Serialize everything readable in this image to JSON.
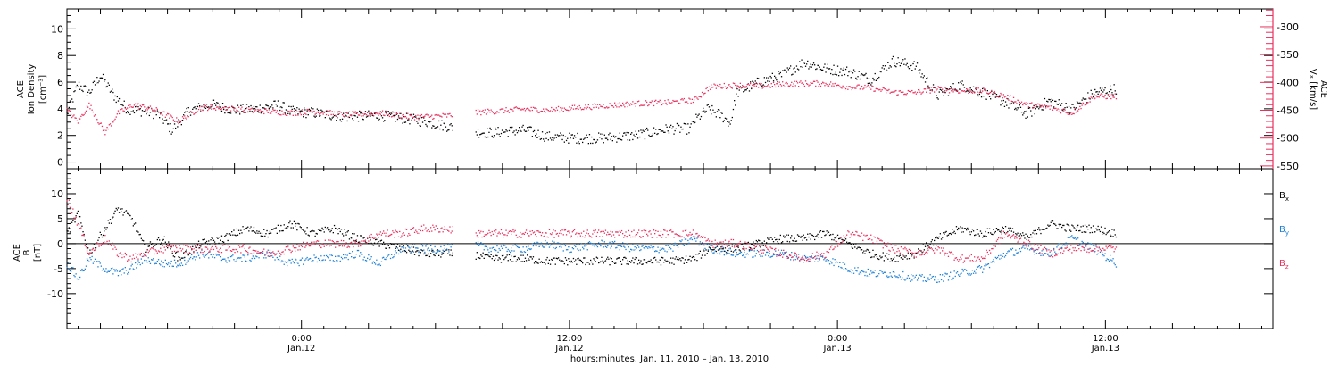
{
  "x_axis": {
    "title": "hours:minutes, Jan. 11, 2010 – Jan. 13, 2010",
    "ticks": [
      {
        "hour": 24,
        "time": "0:00",
        "date": "Jan.12"
      },
      {
        "hour": 36,
        "time": "12:00",
        "date": "Jan.12"
      },
      {
        "hour": 48,
        "time": "0:00",
        "date": "Jan.13"
      },
      {
        "hour": 60,
        "time": "12:00",
        "date": "Jan.13"
      }
    ]
  },
  "chart_data": [
    {
      "type": "scatter",
      "panel": "top",
      "xrange_hours": [
        13.5,
        67.5
      ],
      "ylim": [
        -0.5,
        11.5
      ],
      "y2lim": [
        -555,
        -268
      ],
      "yticks": [
        "0",
        "2",
        "4",
        "6",
        "8",
        "10"
      ],
      "ytick_values": [
        0,
        2,
        4,
        6,
        8,
        10
      ],
      "y2ticks": [
        "-300",
        "-350",
        "-400",
        "-450",
        "-500",
        "-550"
      ],
      "y2tick_values": [
        -300,
        -350,
        -400,
        -450,
        -500,
        -550
      ],
      "ylabel_lines": [
        "ACE",
        "Ion Density",
        "[cm⁻³]"
      ],
      "y2label_lines": [
        "ACE",
        "Vₓ [km/s]"
      ],
      "gap_hours": [
        30.8,
        31.8
      ],
      "series": [
        {
          "color": "#000000",
          "axis": "left",
          "keypoints": [
            [
              13.5,
              3.6
            ],
            [
              14.0,
              5.8
            ],
            [
              14.5,
              5.2
            ],
            [
              15.0,
              6.5
            ],
            [
              15.6,
              5.0
            ],
            [
              16.2,
              4.0
            ],
            [
              17.0,
              3.8
            ],
            [
              17.6,
              3.6
            ],
            [
              18.2,
              2.4
            ],
            [
              19.0,
              3.9
            ],
            [
              20.0,
              4.3
            ],
            [
              21.0,
              3.9
            ],
            [
              22.0,
              4.0
            ],
            [
              23.0,
              4.3
            ],
            [
              23.5,
              3.8
            ],
            [
              24.5,
              3.7
            ],
            [
              26.0,
              3.4
            ],
            [
              27.5,
              3.5
            ],
            [
              29.0,
              3.2
            ],
            [
              30.5,
              2.7
            ],
            [
              31.5,
              2.3
            ],
            [
              32.5,
              2.2
            ],
            [
              34.0,
              2.4
            ],
            [
              35.0,
              1.9
            ],
            [
              36.0,
              1.8
            ],
            [
              37.5,
              1.8
            ],
            [
              39.0,
              2.0
            ],
            [
              40.5,
              2.5
            ],
            [
              41.4,
              2.5
            ],
            [
              41.6,
              3.1
            ],
            [
              42.2,
              4.0
            ],
            [
              42.8,
              3.5
            ],
            [
              43.2,
              2.9
            ],
            [
              43.5,
              5.2
            ],
            [
              44.5,
              6.0
            ],
            [
              45.5,
              6.5
            ],
            [
              46.5,
              7.5
            ],
            [
              47.5,
              7.0
            ],
            [
              48.5,
              6.8
            ],
            [
              49.5,
              6.2
            ],
            [
              50.5,
              7.6
            ],
            [
              51.5,
              7.2
            ],
            [
              52.5,
              5.0
            ],
            [
              53.5,
              5.8
            ],
            [
              54.5,
              5.2
            ],
            [
              55.5,
              4.5
            ],
            [
              56.5,
              3.6
            ],
            [
              57.5,
              4.6
            ],
            [
              58.5,
              4.0
            ],
            [
              59.5,
              5.2
            ],
            [
              60.5,
              5.5
            ]
          ]
        },
        {
          "color": "#e8305d",
          "axis": "right",
          "keypoints": [
            [
              13.5,
              -450
            ],
            [
              14.0,
              -470
            ],
            [
              14.5,
              -440
            ],
            [
              15.2,
              -490
            ],
            [
              15.8,
              -455
            ],
            [
              16.5,
              -440
            ],
            [
              17.5,
              -450
            ],
            [
              18.5,
              -470
            ],
            [
              19.5,
              -445
            ],
            [
              20.5,
              -445
            ],
            [
              21.5,
              -450
            ],
            [
              22.5,
              -452
            ],
            [
              23.5,
              -455
            ],
            [
              24.5,
              -452
            ],
            [
              26.0,
              -458
            ],
            [
              27.5,
              -455
            ],
            [
              29.0,
              -462
            ],
            [
              30.5,
              -460
            ],
            [
              31.5,
              -455
            ],
            [
              32.5,
              -452
            ],
            [
              34.0,
              -448
            ],
            [
              35.0,
              -450
            ],
            [
              36.5,
              -445
            ],
            [
              37.5,
              -442
            ],
            [
              39.0,
              -438
            ],
            [
              40.5,
              -436
            ],
            [
              41.6,
              -432
            ],
            [
              42.3,
              -408
            ],
            [
              43.5,
              -405
            ],
            [
              44.5,
              -407
            ],
            [
              46.0,
              -402
            ],
            [
              47.5,
              -402
            ],
            [
              48.5,
              -408
            ],
            [
              49.5,
              -410
            ],
            [
              50.5,
              -418
            ],
            [
              51.5,
              -418
            ],
            [
              52.5,
              -412
            ],
            [
              53.5,
              -415
            ],
            [
              54.5,
              -415
            ],
            [
              55.5,
              -425
            ],
            [
              56.5,
              -440
            ],
            [
              57.5,
              -445
            ],
            [
              58.5,
              -455
            ],
            [
              59.5,
              -425
            ],
            [
              60.5,
              -425
            ]
          ]
        }
      ]
    },
    {
      "type": "scatter",
      "panel": "bottom",
      "xrange_hours": [
        13.5,
        67.5
      ],
      "ylim": [
        -17,
        15
      ],
      "yticks": [
        "10",
        "5",
        "0",
        "-5",
        "-10"
      ],
      "ytick_values": [
        10,
        5,
        0,
        -5,
        -10
      ],
      "ylabel_lines": [
        "ACE",
        "B",
        "[nT]"
      ],
      "zero_line": 0,
      "gap_hours": [
        30.8,
        31.8
      ],
      "series": [
        {
          "name": "Bx",
          "label_main": "B",
          "label_sub": "x",
          "color": "#000000",
          "keypoints": [
            [
              13.5,
              2
            ],
            [
              14.0,
              6
            ],
            [
              14.5,
              -2
            ],
            [
              15.2,
              3
            ],
            [
              15.8,
              7
            ],
            [
              16.4,
              5
            ],
            [
              17.0,
              -1
            ],
            [
              17.8,
              1
            ],
            [
              18.5,
              -3
            ],
            [
              19.5,
              0
            ],
            [
              20.5,
              1
            ],
            [
              21.5,
              3
            ],
            [
              22.5,
              2
            ],
            [
              23.5,
              4
            ],
            [
              24.5,
              2
            ],
            [
              25.5,
              3
            ],
            [
              26.5,
              1
            ],
            [
              27.5,
              0
            ],
            [
              28.5,
              -1
            ],
            [
              29.5,
              -2
            ],
            [
              30.5,
              -2
            ],
            [
              31.5,
              -2
            ],
            [
              32.5,
              -3
            ],
            [
              34.0,
              -3
            ],
            [
              35.0,
              -3.5
            ],
            [
              36.0,
              -3.5
            ],
            [
              37.5,
              -3.5
            ],
            [
              39.0,
              -3.5
            ],
            [
              40.5,
              -3.5
            ],
            [
              41.6,
              -3
            ],
            [
              42.3,
              -1
            ],
            [
              43.5,
              -1
            ],
            [
              44.5,
              0
            ],
            [
              45.5,
              1
            ],
            [
              46.5,
              1
            ],
            [
              47.5,
              2
            ],
            [
              48.5,
              0
            ],
            [
              49.5,
              -2
            ],
            [
              50.5,
              -3
            ],
            [
              51.5,
              -2
            ],
            [
              52.5,
              1
            ],
            [
              53.5,
              3
            ],
            [
              54.5,
              2
            ],
            [
              55.5,
              3
            ],
            [
              56.5,
              1
            ],
            [
              57.5,
              4
            ],
            [
              58.5,
              3
            ],
            [
              59.5,
              3
            ],
            [
              60.5,
              2
            ]
          ]
        },
        {
          "name": "By",
          "label_main": "B",
          "label_sub": "y",
          "color": "#1b7fd6",
          "keypoints": [
            [
              13.5,
              -4
            ],
            [
              14.0,
              -7
            ],
            [
              14.5,
              -3
            ],
            [
              15.2,
              -5
            ],
            [
              15.8,
              -6
            ],
            [
              16.4,
              -5
            ],
            [
              17.0,
              -3
            ],
            [
              17.8,
              -4
            ],
            [
              18.5,
              -4
            ],
            [
              19.5,
              -2
            ],
            [
              20.5,
              -3
            ],
            [
              21.5,
              -3
            ],
            [
              22.5,
              -2
            ],
            [
              23.5,
              -4
            ],
            [
              24.5,
              -3
            ],
            [
              25.5,
              -3
            ],
            [
              26.5,
              -2
            ],
            [
              27.5,
              -4
            ],
            [
              28.5,
              -1
            ],
            [
              29.5,
              -1
            ],
            [
              30.5,
              -1
            ],
            [
              31.5,
              0
            ],
            [
              32.5,
              -1
            ],
            [
              34.0,
              -1
            ],
            [
              35.0,
              0
            ],
            [
              36.0,
              -1
            ],
            [
              37.5,
              0
            ],
            [
              39.0,
              -1
            ],
            [
              40.5,
              -1
            ],
            [
              41.6,
              1
            ],
            [
              42.3,
              -1
            ],
            [
              43.5,
              -2
            ],
            [
              44.5,
              -2
            ],
            [
              45.5,
              -2
            ],
            [
              46.5,
              -3
            ],
            [
              47.5,
              -3
            ],
            [
              48.5,
              -5
            ],
            [
              49.5,
              -6
            ],
            [
              50.5,
              -6
            ],
            [
              51.5,
              -7
            ],
            [
              52.5,
              -7
            ],
            [
              53.5,
              -6
            ],
            [
              54.5,
              -5
            ],
            [
              55.5,
              -2
            ],
            [
              56.5,
              -1
            ],
            [
              57.5,
              -2
            ],
            [
              58.5,
              1
            ],
            [
              59.5,
              -1
            ],
            [
              60.5,
              -4
            ]
          ]
        },
        {
          "name": "Bz",
          "label_main": "B",
          "label_sub": "z",
          "color": "#e8305d",
          "keypoints": [
            [
              13.5,
              9
            ],
            [
              14.0,
              4
            ],
            [
              14.5,
              -2
            ],
            [
              15.2,
              1
            ],
            [
              15.8,
              -2
            ],
            [
              16.4,
              -3
            ],
            [
              17.0,
              -2
            ],
            [
              17.8,
              -1
            ],
            [
              18.5,
              -1
            ],
            [
              19.5,
              -1
            ],
            [
              20.5,
              -1
            ],
            [
              21.5,
              -1
            ],
            [
              22.5,
              -2
            ],
            [
              23.5,
              -1
            ],
            [
              24.5,
              0
            ],
            [
              25.5,
              0
            ],
            [
              26.5,
              0
            ],
            [
              27.5,
              2
            ],
            [
              28.5,
              2
            ],
            [
              29.5,
              3
            ],
            [
              30.5,
              3
            ],
            [
              31.5,
              2
            ],
            [
              32.5,
              2
            ],
            [
              34.0,
              2
            ],
            [
              35.0,
              2
            ],
            [
              36.0,
              2
            ],
            [
              37.5,
              2
            ],
            [
              39.0,
              2
            ],
            [
              40.5,
              2
            ],
            [
              41.6,
              2
            ],
            [
              42.3,
              0
            ],
            [
              43.5,
              0
            ],
            [
              44.5,
              -1
            ],
            [
              45.5,
              -2
            ],
            [
              46.5,
              -3
            ],
            [
              47.5,
              -2
            ],
            [
              48.5,
              2
            ],
            [
              49.5,
              1
            ],
            [
              50.5,
              -1
            ],
            [
              51.5,
              -2
            ],
            [
              52.5,
              -1
            ],
            [
              53.5,
              -3
            ],
            [
              54.5,
              -3
            ],
            [
              55.5,
              2
            ],
            [
              56.5,
              0
            ],
            [
              57.5,
              -2
            ],
            [
              58.5,
              -1
            ],
            [
              59.5,
              -1
            ],
            [
              60.5,
              -1
            ]
          ]
        }
      ]
    }
  ]
}
